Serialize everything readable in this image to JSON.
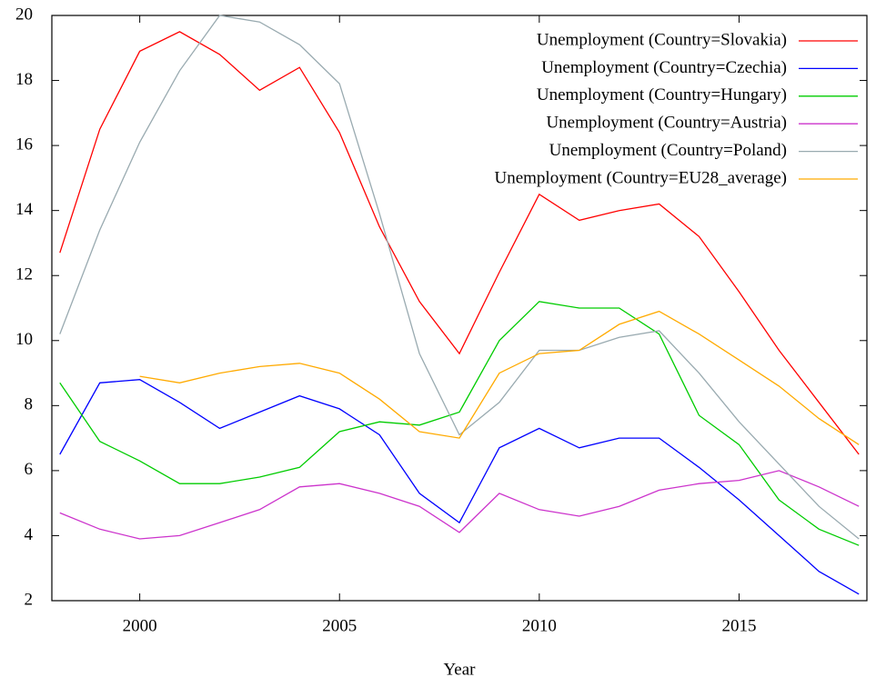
{
  "chart_data": {
    "type": "line",
    "xlabel": "Year",
    "x": [
      1998,
      1999,
      2000,
      2001,
      2002,
      2003,
      2004,
      2005,
      2006,
      2007,
      2008,
      2009,
      2010,
      2011,
      2012,
      2013,
      2014,
      2015,
      2016,
      2017,
      2018
    ],
    "series": [
      {
        "name": "Unemployment (Country=Slovakia)",
        "color": "#ff0000",
        "values": [
          12.7,
          16.5,
          18.9,
          19.5,
          18.8,
          17.7,
          18.4,
          16.4,
          13.5,
          11.2,
          9.6,
          12.1,
          14.5,
          13.7,
          14.0,
          14.2,
          13.2,
          11.5,
          9.7,
          8.1,
          6.5
        ]
      },
      {
        "name": "Unemployment (Country=Czechia)",
        "color": "#0000ff",
        "values": [
          6.5,
          8.7,
          8.8,
          8.1,
          7.3,
          7.8,
          8.3,
          7.9,
          7.1,
          5.3,
          4.4,
          6.7,
          7.3,
          6.7,
          7.0,
          7.0,
          6.1,
          5.1,
          4.0,
          2.9,
          2.2
        ]
      },
      {
        "name": "Unemployment (Country=Hungary)",
        "color": "#00cc00",
        "values": [
          8.7,
          6.9,
          6.3,
          5.6,
          5.6,
          5.8,
          6.1,
          7.2,
          7.5,
          7.4,
          7.8,
          10.0,
          11.2,
          11.0,
          11.0,
          10.2,
          7.7,
          6.8,
          5.1,
          4.2,
          3.7
        ]
      },
      {
        "name": "Unemployment (Country=Austria)",
        "color": "#cc33cc",
        "values": [
          4.7,
          4.2,
          3.9,
          4.0,
          4.4,
          4.8,
          5.5,
          5.6,
          5.3,
          4.9,
          4.1,
          5.3,
          4.8,
          4.6,
          4.9,
          5.4,
          5.6,
          5.7,
          6.0,
          5.5,
          4.9
        ]
      },
      {
        "name": "Unemployment (Country=Poland)",
        "color": "#99aab0",
        "values": [
          10.2,
          13.4,
          16.1,
          18.3,
          20.0,
          19.8,
          19.1,
          17.9,
          13.9,
          9.6,
          7.1,
          8.1,
          9.7,
          9.7,
          10.1,
          10.3,
          9.0,
          7.5,
          6.2,
          4.9,
          3.9
        ]
      },
      {
        "name": "Unemployment (Country=EU28_average)",
        "color": "#ffaa00",
        "values": [
          null,
          null,
          8.9,
          8.7,
          9.0,
          9.2,
          9.3,
          9.0,
          8.2,
          7.2,
          7.0,
          9.0,
          9.6,
          9.7,
          10.5,
          10.9,
          10.2,
          9.4,
          8.6,
          7.6,
          6.8
        ]
      }
    ],
    "xlim": [
      1997.8,
      2018.2
    ],
    "xticks": [
      2000,
      2005,
      2010,
      2015
    ],
    "ylim": [
      2,
      20
    ],
    "yticks": [
      2,
      4,
      6,
      8,
      10,
      12,
      14,
      16,
      18,
      20
    ],
    "grid": false,
    "legend": "top-right"
  }
}
